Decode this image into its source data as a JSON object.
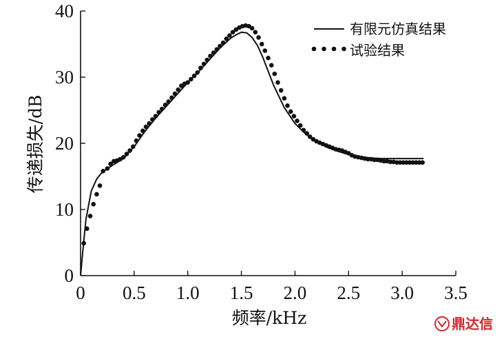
{
  "watermark": {
    "text": "鼎达信",
    "color": "#d8232a"
  },
  "chart_data": {
    "type": "line",
    "xlabel": "频率/kHz",
    "ylabel": "传递损失/dB",
    "xlim": [
      0,
      3.5
    ],
    "ylim": [
      0,
      40
    ],
    "xticks": [
      0,
      0.5,
      1.0,
      1.5,
      2.0,
      2.5,
      3.0,
      3.5
    ],
    "xtick_labels": [
      "0",
      "0.5",
      "1.0",
      "1.5",
      "2.0",
      "2.5",
      "3.0",
      "3.5"
    ],
    "yticks": [
      0,
      10,
      20,
      30,
      40
    ],
    "ytick_labels": [
      "0",
      "10",
      "20",
      "30",
      "40"
    ],
    "grid": false,
    "legend_position": "top-right",
    "series": [
      {
        "name": "有限元仿真结果",
        "style": "solid-line",
        "color": "#111111",
        "x": [
          0.0,
          0.02,
          0.05,
          0.1,
          0.15,
          0.2,
          0.3,
          0.4,
          0.5,
          0.6,
          0.7,
          0.8,
          0.9,
          1.0,
          1.1,
          1.2,
          1.3,
          1.4,
          1.45,
          1.5,
          1.55,
          1.6,
          1.65,
          1.7,
          1.8,
          1.9,
          2.0,
          2.1,
          2.2,
          2.3,
          2.4,
          2.5,
          2.6,
          2.7,
          2.8,
          2.9,
          3.0,
          3.1,
          3.2
        ],
        "y": [
          0.0,
          3.5,
          8.5,
          12.8,
          14.6,
          15.6,
          16.7,
          17.7,
          19.5,
          21.8,
          23.8,
          25.6,
          27.4,
          29.2,
          30.8,
          32.6,
          34.4,
          35.9,
          36.4,
          36.8,
          36.7,
          36.0,
          34.8,
          33.0,
          28.8,
          25.4,
          23.0,
          21.4,
          20.3,
          19.4,
          18.8,
          18.3,
          18.0,
          17.8,
          17.7,
          17.7,
          17.7,
          17.7,
          17.7
        ]
      },
      {
        "name": "试验结果",
        "style": "dots",
        "color": "#111111",
        "x": [
          0.03,
          0.06,
          0.09,
          0.12,
          0.15,
          0.18,
          0.21,
          0.25,
          0.28,
          0.31,
          0.34,
          0.37,
          0.4,
          0.43,
          0.46,
          0.49,
          0.52,
          0.55,
          0.58,
          0.61,
          0.64,
          0.67,
          0.7,
          0.73,
          0.76,
          0.79,
          0.82,
          0.85,
          0.88,
          0.91,
          0.94,
          0.97,
          1.0,
          1.03,
          1.06,
          1.09,
          1.12,
          1.15,
          1.18,
          1.21,
          1.24,
          1.27,
          1.3,
          1.33,
          1.36,
          1.39,
          1.42,
          1.45,
          1.48,
          1.51,
          1.54,
          1.57,
          1.6,
          1.63,
          1.66,
          1.69,
          1.72,
          1.75,
          1.78,
          1.81,
          1.84,
          1.87,
          1.9,
          1.93,
          1.96,
          1.99,
          2.02,
          2.05,
          2.08,
          2.11,
          2.14,
          2.17,
          2.2,
          2.23,
          2.26,
          2.29,
          2.32,
          2.35,
          2.38,
          2.41,
          2.44,
          2.47,
          2.5,
          2.53,
          2.56,
          2.59,
          2.62,
          2.65,
          2.68,
          2.71,
          2.74,
          2.77,
          2.8,
          2.83,
          2.86,
          2.89,
          2.92,
          2.95,
          2.98,
          3.01,
          3.04,
          3.07,
          3.1,
          3.13,
          3.16,
          3.19
        ],
        "y": [
          4.9,
          7.1,
          9.0,
          10.8,
          12.3,
          13.6,
          15.8,
          16.2,
          16.9,
          17.3,
          17.4,
          17.6,
          17.9,
          18.4,
          18.9,
          19.5,
          20.4,
          21.2,
          21.9,
          22.5,
          23.0,
          23.6,
          24.1,
          24.7,
          25.2,
          25.8,
          26.3,
          26.9,
          27.5,
          28.1,
          28.7,
          29.0,
          29.2,
          29.7,
          30.2,
          30.7,
          31.4,
          32.0,
          32.6,
          33.2,
          33.7,
          34.2,
          34.7,
          35.2,
          35.8,
          36.3,
          36.8,
          37.2,
          37.5,
          37.7,
          37.8,
          37.7,
          37.4,
          36.8,
          36.0,
          35.0,
          34.0,
          32.9,
          31.8,
          30.5,
          29.2,
          28.0,
          26.8,
          25.7,
          24.8,
          24.1,
          23.4,
          22.7,
          22.0,
          21.5,
          21.0,
          20.6,
          20.3,
          20.1,
          19.9,
          19.7,
          19.5,
          19.3,
          19.1,
          19.0,
          18.9,
          18.7,
          18.5,
          18.2,
          18.0,
          17.9,
          17.8,
          17.7,
          17.6,
          17.6,
          17.5,
          17.5,
          17.4,
          17.3,
          17.3,
          17.2,
          17.2,
          17.1,
          17.1,
          17.1,
          17.1,
          17.1,
          17.1,
          17.1,
          17.1,
          17.1
        ]
      }
    ]
  }
}
